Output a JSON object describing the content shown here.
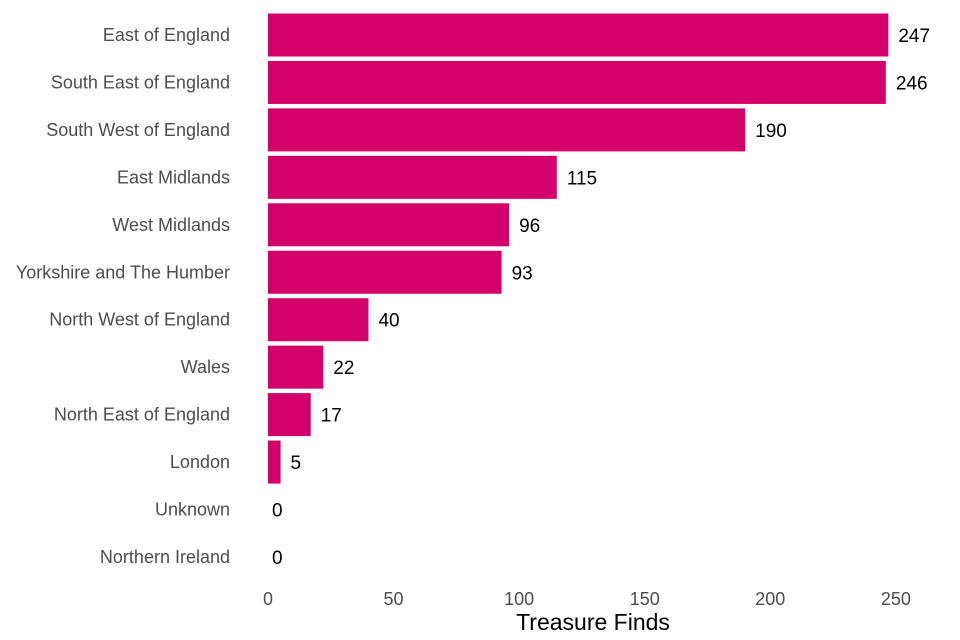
{
  "chart_data": {
    "type": "bar",
    "orientation": "horizontal",
    "categories": [
      "East of England",
      "South East of England",
      "South West of England",
      "East Midlands",
      "West Midlands",
      "Yorkshire and The Humber",
      "North West of England",
      "Wales",
      "North East of England",
      "London",
      "Unknown",
      "Northern Ireland"
    ],
    "values": [
      247,
      246,
      190,
      115,
      96,
      93,
      40,
      22,
      17,
      5,
      0,
      0
    ],
    "title": "",
    "xlabel": "Treasure Finds",
    "ylabel": "",
    "xlim": [
      0,
      260
    ],
    "xticks": [
      0,
      50,
      100,
      150,
      200,
      250
    ],
    "grid": false,
    "legend": "none",
    "data_labels": true
  },
  "colors": {
    "bar": "#d4006a",
    "label_text": "#4d4d4d",
    "value_text": "#000000"
  }
}
